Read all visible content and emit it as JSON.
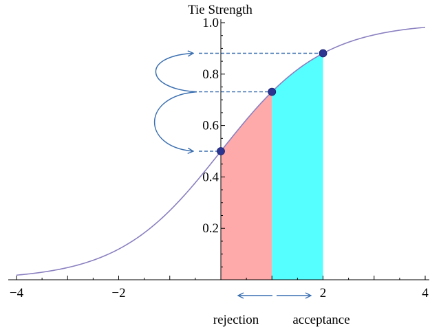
{
  "chart_data": {
    "type": "line",
    "ylabel": "Tie Strength",
    "xlim": [
      -4,
      4
    ],
    "ylim": [
      0,
      1.0
    ],
    "x_ticks": [
      {
        "value": -4,
        "label": "−4"
      },
      {
        "value": -2,
        "label": "−2"
      },
      {
        "value": 2,
        "label": "2"
      },
      {
        "value": 4,
        "label": "4"
      }
    ],
    "y_ticks": [
      {
        "value": 0.2,
        "label": "0.2"
      },
      {
        "value": 0.4,
        "label": "0.4"
      },
      {
        "value": 0.6,
        "label": "0.6"
      },
      {
        "value": 0.8,
        "label": "0.8"
      },
      {
        "value": 1.0,
        "label": "1.0"
      }
    ],
    "curve": {
      "function": "logistic",
      "x": [
        -4,
        -3.5,
        -3,
        -2.5,
        -2,
        -1.5,
        -1,
        -0.5,
        0,
        0.5,
        1,
        1.5,
        2,
        2.5,
        3,
        3.5,
        4
      ],
      "y": [
        0.018,
        0.029,
        0.047,
        0.076,
        0.119,
        0.182,
        0.269,
        0.378,
        0.5,
        0.622,
        0.731,
        0.818,
        0.881,
        0.924,
        0.953,
        0.971,
        0.982
      ],
      "color": "#8a7fc0"
    },
    "points": [
      {
        "x": 0,
        "y": 0.5
      },
      {
        "x": 1,
        "y": 0.731
      },
      {
        "x": 2,
        "y": 0.881
      }
    ],
    "point_color": "#2c3590",
    "shaded_regions": [
      {
        "x_from": 0,
        "x_to": 1,
        "color": "#ffaaaa"
      },
      {
        "x_from": 1,
        "x_to": 2,
        "color": "#55ffff"
      }
    ],
    "guide_color": "#3a6fb0",
    "annotations": {
      "rejection": "rejection",
      "acceptance": "acceptance"
    }
  }
}
